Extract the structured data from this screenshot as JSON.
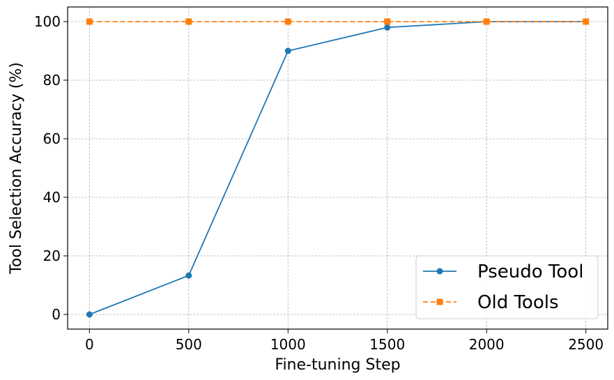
{
  "chart_data": {
    "type": "line",
    "title": "",
    "xlabel": "Fine-tuning Step",
    "ylabel": "Tool Selection Accuracy (%)",
    "x": [
      0,
      500,
      1000,
      1500,
      2000,
      2500
    ],
    "xlim": [
      -110,
      2610
    ],
    "ylim": [
      -5,
      105
    ],
    "xticks": [
      0,
      500,
      1000,
      1500,
      2000,
      2500
    ],
    "yticks": [
      0,
      20,
      40,
      60,
      80,
      100
    ],
    "grid": true,
    "legend_position": "lower-right",
    "series": [
      {
        "name": "Pseudo Tool",
        "values": [
          0,
          13.3,
          90,
          98,
          100,
          100
        ],
        "color": "#1f77b4",
        "line_style": "solid",
        "marker": "circle"
      },
      {
        "name": "Old Tools",
        "values": [
          100,
          100,
          100,
          100,
          100,
          100
        ],
        "color": "#ff7f0e",
        "line_style": "dashed",
        "marker": "square"
      }
    ]
  }
}
